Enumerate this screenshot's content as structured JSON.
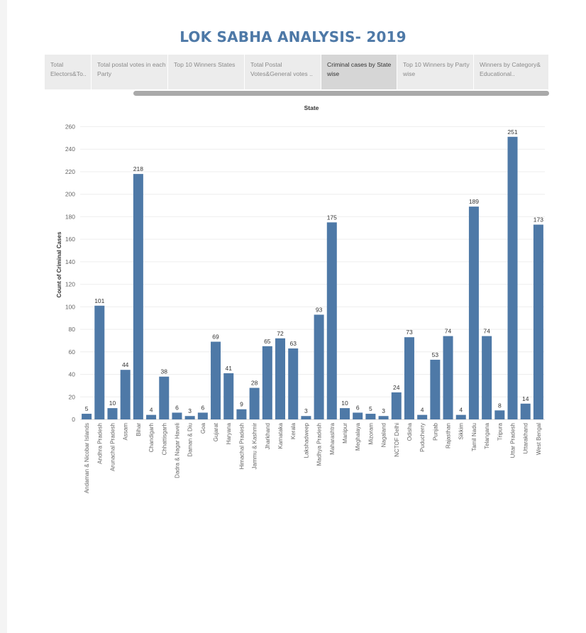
{
  "page": {
    "title": "LOK SABHA ANALYSIS- 2019"
  },
  "tabs": [
    {
      "label": "Total Electors&To..",
      "active": false
    },
    {
      "label": "Total postal votes in each Party",
      "active": false
    },
    {
      "label": "Top 10 Winners States",
      "active": false
    },
    {
      "label": "Total Postal Votes&General votes ..",
      "active": false
    },
    {
      "label": "Criminal cases by State wise",
      "active": true
    },
    {
      "label": "Top 10 Winners by Party wise",
      "active": false
    },
    {
      "label": "Winners by Category& Educational..",
      "active": false
    }
  ],
  "colors": {
    "bar": "#4e79a7",
    "title": "#4e79a7"
  },
  "chart_data": {
    "type": "bar",
    "title": "State",
    "xlabel": "",
    "ylabel": "Count of Criminal Cases",
    "ylim": [
      0,
      265
    ],
    "yticks": [
      0,
      20,
      40,
      60,
      80,
      100,
      120,
      140,
      160,
      180,
      200,
      220,
      240,
      260
    ],
    "grid": true,
    "categories": [
      "Andaman & Nicobar Islands",
      "Andhra Pradesh",
      "Arunachal Pradesh",
      "Assam",
      "Bihar",
      "Chandigarh",
      "Chhattisgarh",
      "Dadra & Nagar Haveli",
      "Daman & Diu",
      "Goa",
      "Gujarat",
      "Haryana",
      "Himachal Pradesh",
      "Jammu & Kashmir",
      "Jharkhand",
      "Karnataka",
      "Kerala",
      "Lakshadweep",
      "Madhya Pradesh",
      "Maharashtra",
      "Manipur",
      "Meghalaya",
      "Mizoram",
      "Nagaland",
      "NCTOF Delhi",
      "Odisha",
      "Puducherry",
      "Punjab",
      "Rajasthan",
      "Sikkim",
      "Tamil Nadu",
      "Telangana",
      "Tripura",
      "Uttar Pradesh",
      "Uttarakhand",
      "West Bengal"
    ],
    "values": [
      5,
      101,
      10,
      44,
      218,
      4,
      38,
      6,
      3,
      6,
      69,
      41,
      9,
      28,
      65,
      72,
      63,
      3,
      93,
      175,
      10,
      6,
      5,
      3,
      24,
      73,
      4,
      53,
      74,
      4,
      189,
      74,
      8,
      251,
      14,
      173
    ]
  }
}
